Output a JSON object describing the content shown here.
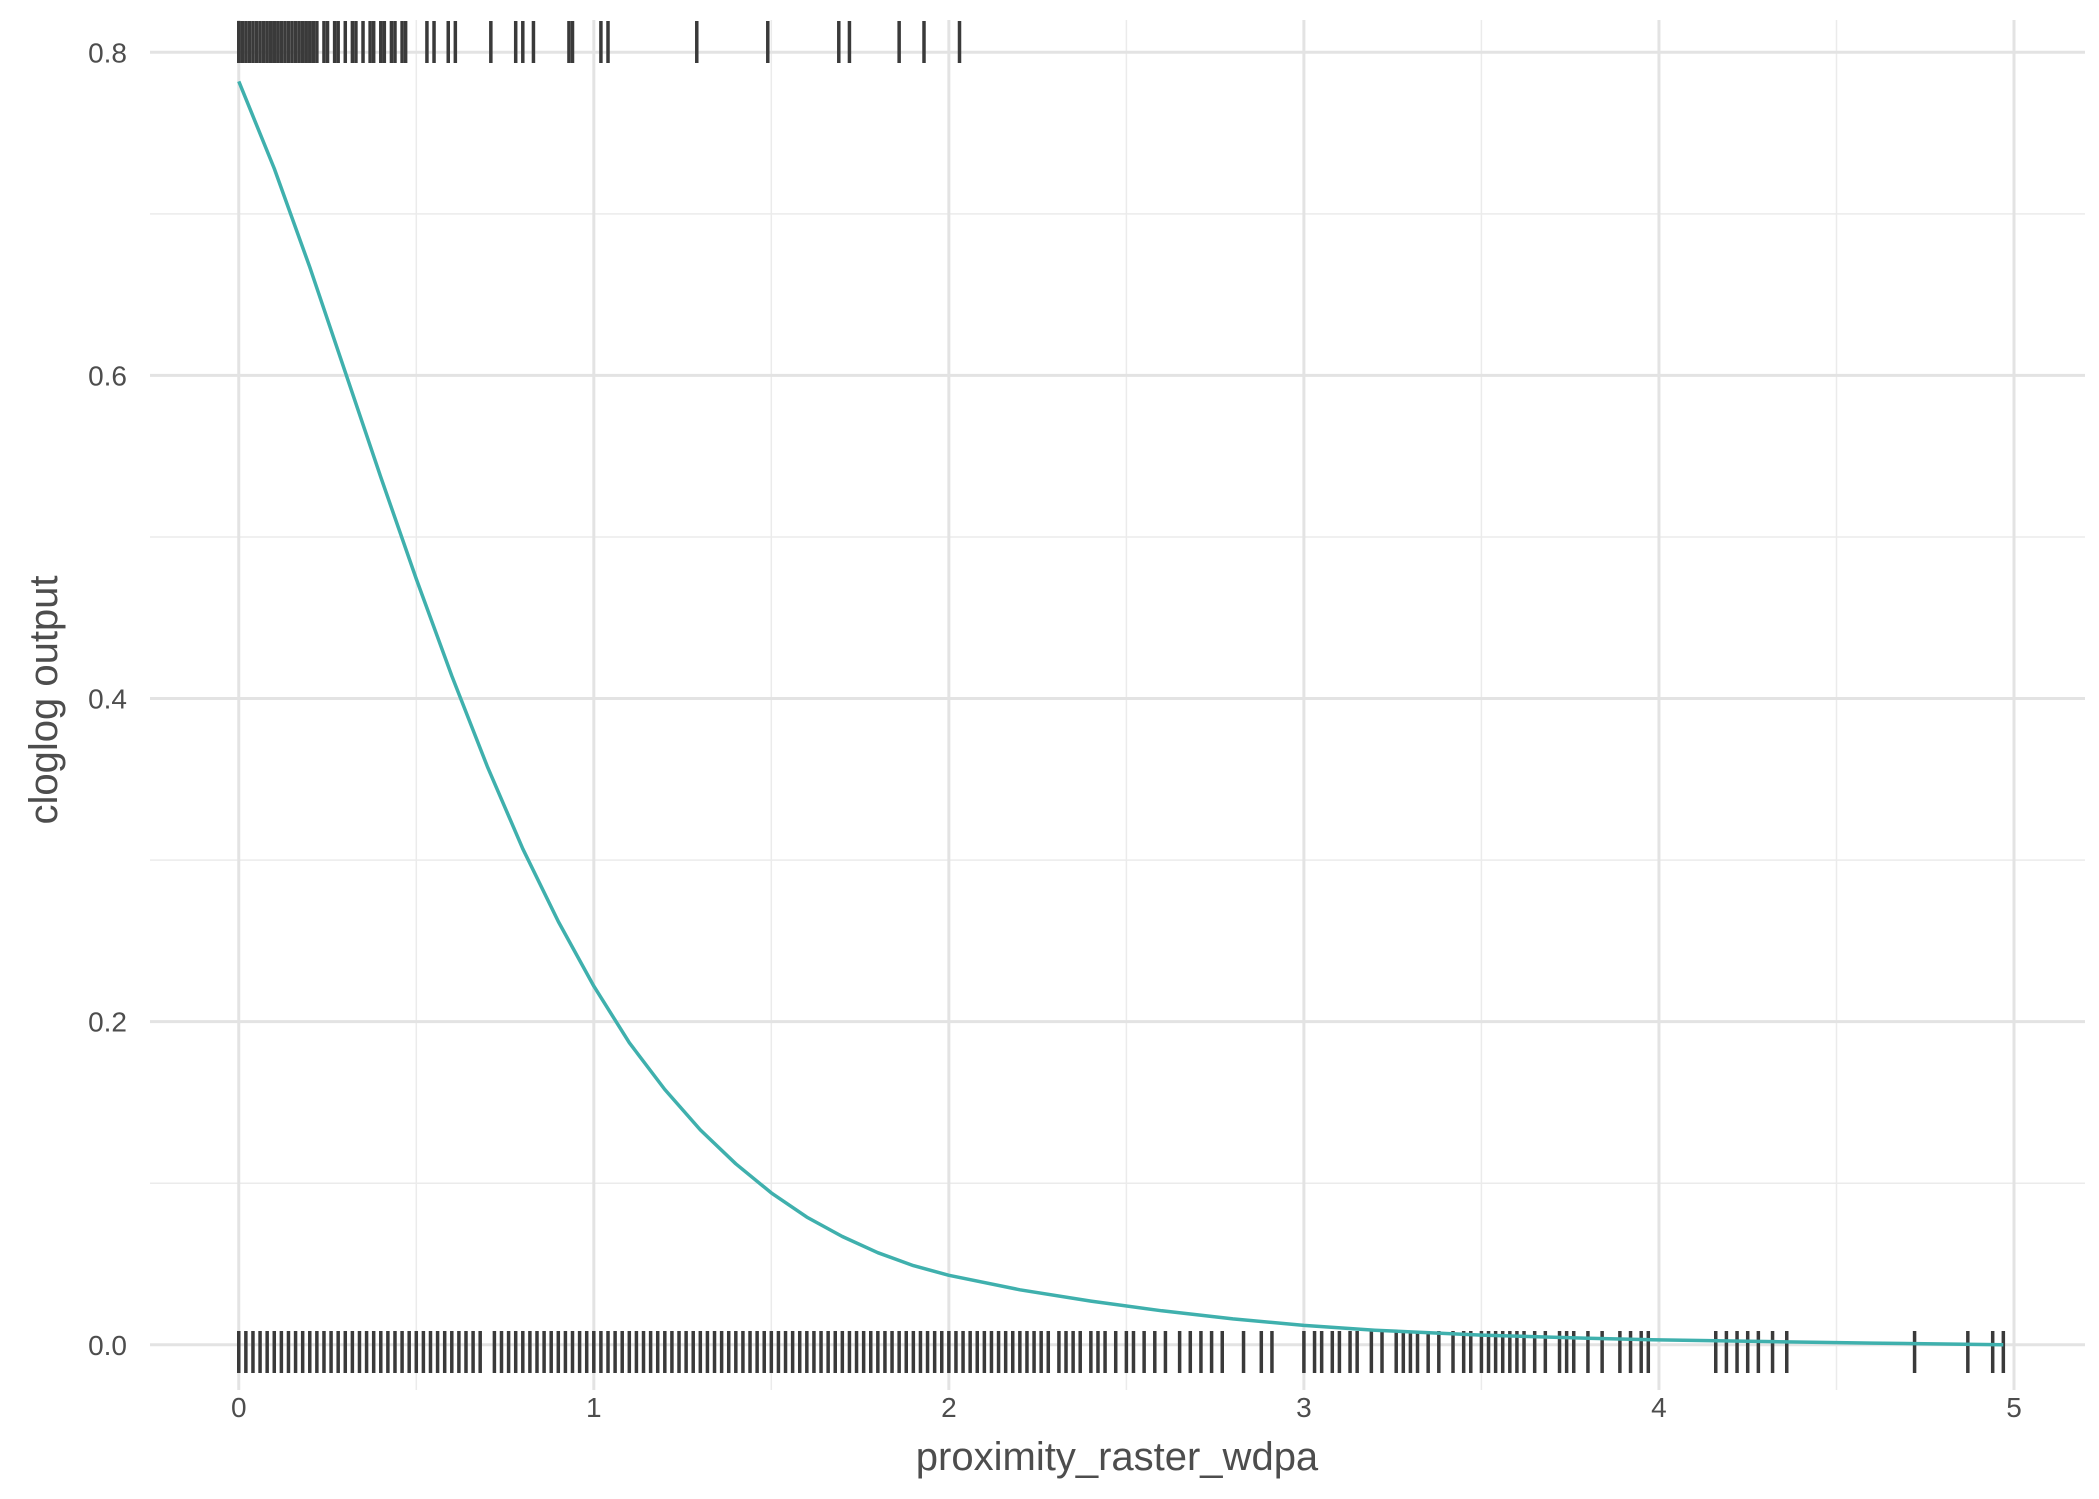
{
  "chart_data": {
    "type": "line",
    "title": "",
    "xlabel": "proximity_raster_wdpa",
    "ylabel": "cloglog output",
    "xlim": [
      -0.25,
      5.2
    ],
    "ylim": [
      -0.028,
      0.82
    ],
    "x_ticks": [
      0,
      1,
      2,
      3,
      4,
      5
    ],
    "x_tick_labels": [
      "0",
      "1",
      "2",
      "3",
      "4",
      "5"
    ],
    "y_ticks": [
      0.0,
      0.2,
      0.4,
      0.6,
      0.8
    ],
    "y_tick_labels": [
      "0.0",
      "0.2",
      "0.4",
      "0.6",
      "0.8"
    ],
    "grid": true,
    "line_color": "#3fb0ad",
    "rug_color": "#3a3a3a",
    "series": [
      {
        "x": [
          0,
          0.1,
          0.2,
          0.3,
          0.4,
          0.5,
          0.6,
          0.7,
          0.8,
          0.9,
          1.0,
          1.1,
          1.2,
          1.3,
          1.4,
          1.5,
          1.6,
          1.7,
          1.8,
          1.9,
          2.0,
          2.2,
          2.4,
          2.6,
          2.8,
          3.0,
          3.2,
          3.5,
          3.8,
          4.0,
          4.3,
          4.6,
          4.97
        ],
        "y": [
          0.782,
          0.728,
          0.667,
          0.602,
          0.537,
          0.474,
          0.414,
          0.358,
          0.307,
          0.262,
          0.222,
          0.187,
          0.158,
          0.133,
          0.112,
          0.094,
          0.079,
          0.067,
          0.057,
          0.049,
          0.043,
          0.034,
          0.027,
          0.021,
          0.016,
          0.012,
          0.009,
          0.006,
          0.004,
          0.003,
          0.002,
          0.001,
          0.0
        ]
      }
    ],
    "rug_presence_x": [
      0.0,
      0.01,
      0.02,
      0.03,
      0.04,
      0.05,
      0.06,
      0.07,
      0.08,
      0.09,
      0.1,
      0.11,
      0.12,
      0.13,
      0.14,
      0.15,
      0.16,
      0.17,
      0.18,
      0.19,
      0.2,
      0.21,
      0.22,
      0.24,
      0.25,
      0.27,
      0.28,
      0.3,
      0.32,
      0.33,
      0.35,
      0.37,
      0.38,
      0.4,
      0.41,
      0.43,
      0.44,
      0.46,
      0.47,
      0.53,
      0.55,
      0.59,
      0.61,
      0.71,
      0.78,
      0.8,
      0.83,
      0.93,
      0.94,
      1.02,
      1.04,
      1.29,
      1.49,
      1.69,
      1.72,
      1.86,
      1.93,
      2.03
    ],
    "rug_background_x": [
      0.0,
      0.02,
      0.04,
      0.06,
      0.08,
      0.1,
      0.12,
      0.14,
      0.16,
      0.18,
      0.2,
      0.22,
      0.24,
      0.26,
      0.28,
      0.3,
      0.32,
      0.34,
      0.36,
      0.38,
      0.4,
      0.42,
      0.44,
      0.46,
      0.48,
      0.5,
      0.52,
      0.54,
      0.56,
      0.58,
      0.6,
      0.62,
      0.64,
      0.66,
      0.68,
      0.72,
      0.74,
      0.76,
      0.78,
      0.8,
      0.82,
      0.84,
      0.86,
      0.88,
      0.9,
      0.92,
      0.94,
      0.96,
      0.98,
      1.0,
      1.02,
      1.04,
      1.06,
      1.08,
      1.1,
      1.12,
      1.14,
      1.16,
      1.18,
      1.2,
      1.22,
      1.24,
      1.26,
      1.28,
      1.3,
      1.32,
      1.34,
      1.36,
      1.38,
      1.4,
      1.42,
      1.44,
      1.46,
      1.48,
      1.5,
      1.52,
      1.54,
      1.56,
      1.58,
      1.6,
      1.62,
      1.64,
      1.66,
      1.68,
      1.7,
      1.72,
      1.74,
      1.76,
      1.78,
      1.8,
      1.82,
      1.84,
      1.86,
      1.88,
      1.9,
      1.92,
      1.94,
      1.96,
      1.98,
      2.0,
      2.02,
      2.04,
      2.06,
      2.08,
      2.1,
      2.12,
      2.14,
      2.16,
      2.18,
      2.2,
      2.22,
      2.24,
      2.26,
      2.28,
      2.31,
      2.33,
      2.35,
      2.37,
      2.4,
      2.42,
      2.44,
      2.47,
      2.5,
      2.52,
      2.55,
      2.58,
      2.61,
      2.65,
      2.68,
      2.71,
      2.74,
      2.77,
      2.83,
      2.88,
      2.91,
      3.0,
      3.03,
      3.05,
      3.08,
      3.1,
      3.13,
      3.15,
      3.19,
      3.22,
      3.26,
      3.28,
      3.3,
      3.32,
      3.35,
      3.38,
      3.42,
      3.45,
      3.47,
      3.5,
      3.52,
      3.54,
      3.56,
      3.58,
      3.6,
      3.62,
      3.65,
      3.68,
      3.72,
      3.74,
      3.76,
      3.8,
      3.84,
      3.89,
      3.92,
      3.95,
      3.97,
      4.16,
      4.19,
      4.22,
      4.25,
      4.28,
      4.32,
      4.36,
      4.72,
      4.87,
      4.94,
      4.97
    ],
    "annotations": []
  }
}
